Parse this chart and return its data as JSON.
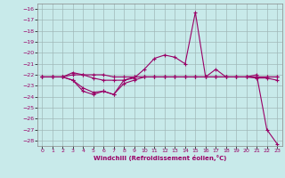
{
  "xlabel": "Windchill (Refroidissement éolien,°C)",
  "bg_color": "#c8eaea",
  "grid_color": "#a0b8b8",
  "line_color": "#990066",
  "xlim": [
    -0.5,
    23.5
  ],
  "ylim": [
    -28.5,
    -15.5
  ],
  "yticks": [
    -28,
    -27,
    -26,
    -25,
    -24,
    -23,
    -22,
    -21,
    -20,
    -19,
    -18,
    -17,
    -16
  ],
  "xticks": [
    0,
    1,
    2,
    3,
    4,
    5,
    6,
    7,
    8,
    9,
    10,
    11,
    12,
    13,
    14,
    15,
    16,
    17,
    18,
    19,
    20,
    21,
    22,
    23
  ],
  "series1_x": [
    0,
    1,
    2,
    3,
    4,
    5,
    6,
    7,
    8,
    9,
    10,
    11,
    12,
    13,
    14,
    15,
    16,
    17,
    18,
    19,
    20,
    21,
    22,
    23
  ],
  "series1_y": [
    -22.2,
    -22.2,
    -22.2,
    -21.8,
    -22.0,
    -22.0,
    -22.0,
    -22.2,
    -22.2,
    -22.2,
    -22.2,
    -22.2,
    -22.2,
    -22.2,
    -22.2,
    -22.2,
    -22.2,
    -22.2,
    -22.2,
    -22.2,
    -22.2,
    -22.2,
    -22.2,
    -22.2
  ],
  "series2_x": [
    0,
    1,
    2,
    3,
    4,
    5,
    6,
    7,
    8,
    9,
    10,
    11,
    12,
    13,
    14,
    15,
    16,
    17,
    18,
    19,
    20,
    21,
    22,
    23
  ],
  "series2_y": [
    -22.2,
    -22.2,
    -22.2,
    -22.5,
    -23.2,
    -23.6,
    -23.5,
    -23.8,
    -22.8,
    -22.5,
    -22.2,
    -22.2,
    -22.2,
    -22.2,
    -22.2,
    -22.2,
    -22.2,
    -22.2,
    -22.2,
    -22.2,
    -22.2,
    -22.2,
    -22.2,
    -22.2
  ],
  "series3_x": [
    0,
    1,
    2,
    3,
    4,
    5,
    6,
    7,
    8,
    9,
    10,
    11,
    12,
    13,
    14,
    15,
    16,
    17,
    18,
    19,
    20,
    21,
    22,
    23
  ],
  "series3_y": [
    -22.2,
    -22.2,
    -22.2,
    -22.0,
    -22.0,
    -22.3,
    -22.5,
    -22.5,
    -22.5,
    -22.3,
    -21.5,
    -20.5,
    -20.2,
    -20.4,
    -21.0,
    -16.3,
    -22.2,
    -21.5,
    -22.2,
    -22.2,
    -22.2,
    -22.3,
    -22.3,
    -22.5
  ],
  "series4_x": [
    0,
    1,
    2,
    3,
    4,
    5,
    6,
    7,
    8,
    9,
    10,
    11,
    12,
    13,
    14,
    15,
    16,
    17,
    18,
    19,
    20,
    21,
    22,
    23
  ],
  "series4_y": [
    -22.2,
    -22.2,
    -22.2,
    -22.5,
    -23.5,
    -23.8,
    -23.5,
    -23.8,
    -22.5,
    -22.2,
    -22.2,
    -22.2,
    -22.2,
    -22.2,
    -22.2,
    -22.2,
    -22.2,
    -22.2,
    -22.2,
    -22.2,
    -22.2,
    -22.0,
    -27.0,
    -28.3
  ]
}
